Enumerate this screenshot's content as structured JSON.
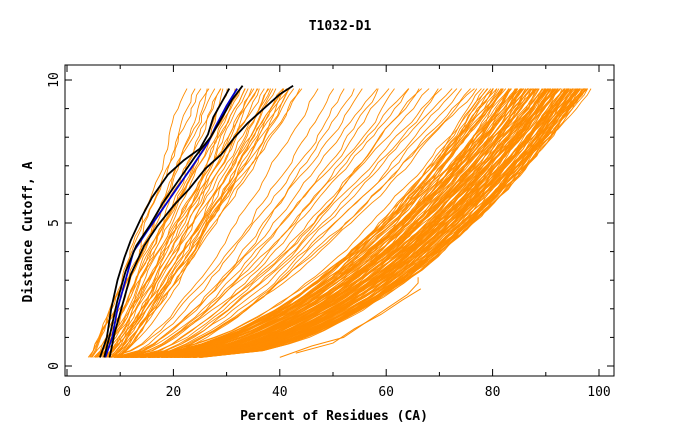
{
  "chart_data": {
    "type": "line",
    "title": "T1032-D1",
    "xlabel": "Percent of Residues (CA)",
    "ylabel": "Distance Cutoff, A",
    "xlim": [
      0,
      100
    ],
    "ylim": [
      0,
      10
    ],
    "xticks": [
      "0",
      "20",
      "40",
      "60",
      "80",
      "100"
    ],
    "yticks": [
      "0",
      "5",
      "10"
    ],
    "grid": false,
    "legend": "none",
    "colors": {
      "background_models": "#ff8c00",
      "highlight_blue": "#0000cc",
      "highlight_black": "#000000",
      "axes": "#000000"
    },
    "series": [
      {
        "color": "#0000cc",
        "x": [
          7.2,
          8.5,
          9.5,
          11.0,
          12.5,
          15.0,
          18.0,
          21.0,
          24.0,
          26.5,
          28.0,
          30.0,
          32.0
        ],
        "y": [
          0.3,
          1.0,
          2.0,
          3.0,
          4.0,
          4.7,
          5.5,
          6.3,
          7.1,
          7.8,
          8.4,
          9.1,
          9.7
        ]
      },
      {
        "color": "#000000",
        "x": [
          6.2,
          7.5,
          8.3,
          9.5,
          10.8,
          12.0,
          14.0,
          16.0,
          19.0,
          22.0,
          25.0,
          26.5,
          27.5,
          29.0,
          30.5
        ],
        "y": [
          0.3,
          1.0,
          2.0,
          3.0,
          3.8,
          4.4,
          5.2,
          5.9,
          6.7,
          7.2,
          7.6,
          8.1,
          8.7,
          9.2,
          9.7
        ]
      },
      {
        "color": "#000000",
        "x": [
          8.0,
          9.0,
          10.5,
          12.0,
          14.5,
          17.0,
          20.0,
          23.0,
          26.0,
          29.0,
          31.5,
          34.0,
          37.0,
          40.0,
          42.5
        ],
        "y": [
          0.3,
          1.2,
          2.2,
          3.2,
          4.2,
          4.9,
          5.6,
          6.2,
          6.9,
          7.4,
          8.0,
          8.5,
          9.0,
          9.5,
          9.8
        ]
      },
      {
        "color": "#000000",
        "x": [
          7.0,
          8.2,
          9.5,
          11.0,
          13.0,
          15.5,
          18.0,
          21.0,
          24.0,
          27.0,
          29.5,
          31.0,
          33.0
        ],
        "y": [
          0.3,
          1.2,
          2.3,
          3.3,
          4.2,
          4.9,
          5.7,
          6.5,
          7.3,
          8.0,
          8.8,
          9.3,
          9.8
        ]
      }
    ],
    "band_groups": [
      {
        "name_hint": "steep_group",
        "count": 38,
        "left_x0": 4.0,
        "left_x10": 22.0,
        "right_x0": 10.0,
        "right_x10": 44.0,
        "curvature": 0.15
      },
      {
        "name_hint": "mid_group",
        "count": 22,
        "left_x0": 8.0,
        "left_x10": 45.0,
        "right_x0": 15.0,
        "right_x10": 78.0,
        "curvature": 0.55
      },
      {
        "name_hint": "bulk_group",
        "count": 140,
        "left_x0": 9.0,
        "left_x10": 78.0,
        "right_x0": 25.0,
        "right_x10": 98.0,
        "curvature": 1.0
      }
    ],
    "outlier_series": [
      {
        "x": [
          40.0,
          46.0,
          52.0,
          56.0,
          60.0,
          64.0,
          66.0,
          66.0
        ],
        "y": [
          0.3,
          0.7,
          1.0,
          1.5,
          2.0,
          2.5,
          2.9,
          3.1
        ]
      },
      {
        "x": [
          43.0,
          50.0,
          54.0,
          59.0,
          63.0,
          66.5
        ],
        "y": [
          0.45,
          0.8,
          1.3,
          1.8,
          2.3,
          2.7
        ]
      }
    ]
  }
}
